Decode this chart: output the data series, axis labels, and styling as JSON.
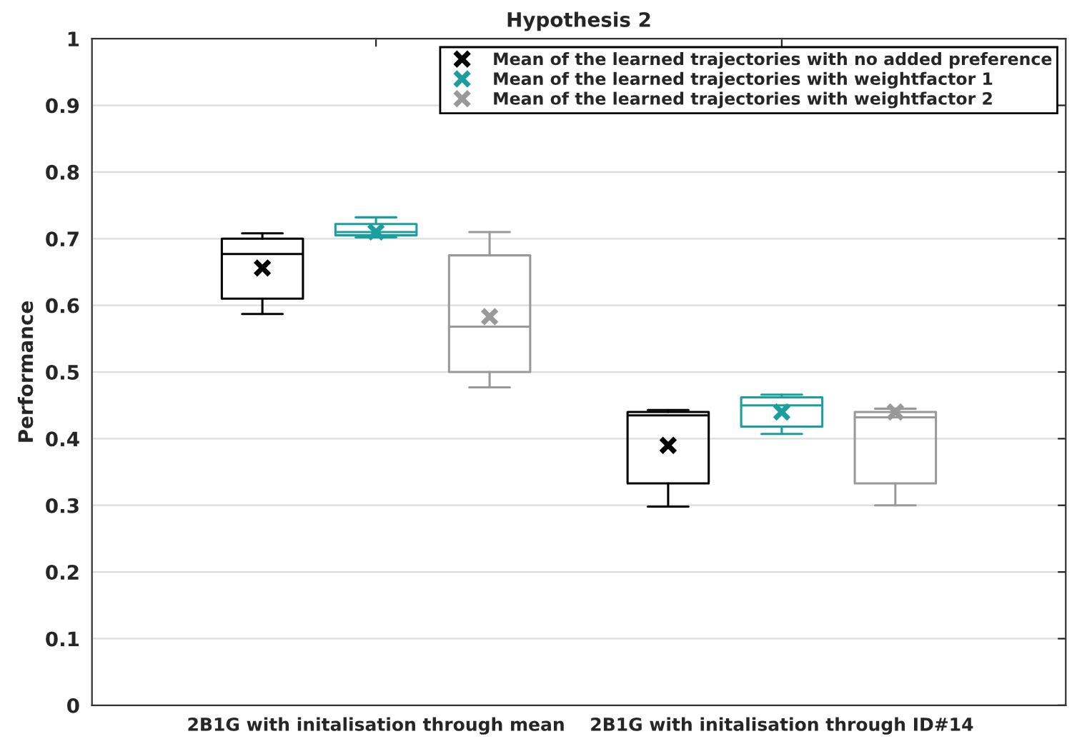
{
  "chart_data": {
    "type": "box",
    "title": "Hypothesis 2",
    "ylabel": "Performance",
    "categories": [
      "2B1G with initalisation through mean",
      "2B1G with initalisation through ID#14"
    ],
    "series": [
      {
        "name": "Mean of the learned trajectories with no added preference",
        "color": "#000000",
        "boxes": [
          {
            "low": 0.587,
            "q1": 0.61,
            "median": 0.677,
            "q3": 0.7,
            "high": 0.708,
            "mean": 0.656
          },
          {
            "low": 0.298,
            "q1": 0.333,
            "median": 0.435,
            "q3": 0.44,
            "high": 0.443,
            "mean": 0.39
          }
        ]
      },
      {
        "name": "Mean of the learned trajectories with weightfactor 1",
        "color": "#1a9e9e",
        "boxes": [
          {
            "low": 0.702,
            "q1": 0.705,
            "median": 0.71,
            "q3": 0.722,
            "high": 0.732,
            "mean": 0.71
          },
          {
            "low": 0.407,
            "q1": 0.418,
            "median": 0.45,
            "q3": 0.462,
            "high": 0.466,
            "mean": 0.44
          }
        ]
      },
      {
        "name": "Mean of the learned trajectories with weightfactor 2",
        "color": "#999999",
        "boxes": [
          {
            "low": 0.477,
            "q1": 0.5,
            "median": 0.568,
            "q3": 0.675,
            "high": 0.71,
            "mean": 0.583
          },
          {
            "low": 0.3,
            "q1": 0.333,
            "median": 0.432,
            "q3": 0.44,
            "high": 0.445,
            "mean": 0.44
          }
        ]
      }
    ],
    "ylim": [
      0,
      1
    ],
    "yticks": [
      0,
      0.1,
      0.2,
      0.3,
      0.4,
      0.5,
      0.6,
      0.7,
      0.8,
      0.9,
      1
    ],
    "grid": "y",
    "legend": "top right",
    "marker": "cross"
  }
}
